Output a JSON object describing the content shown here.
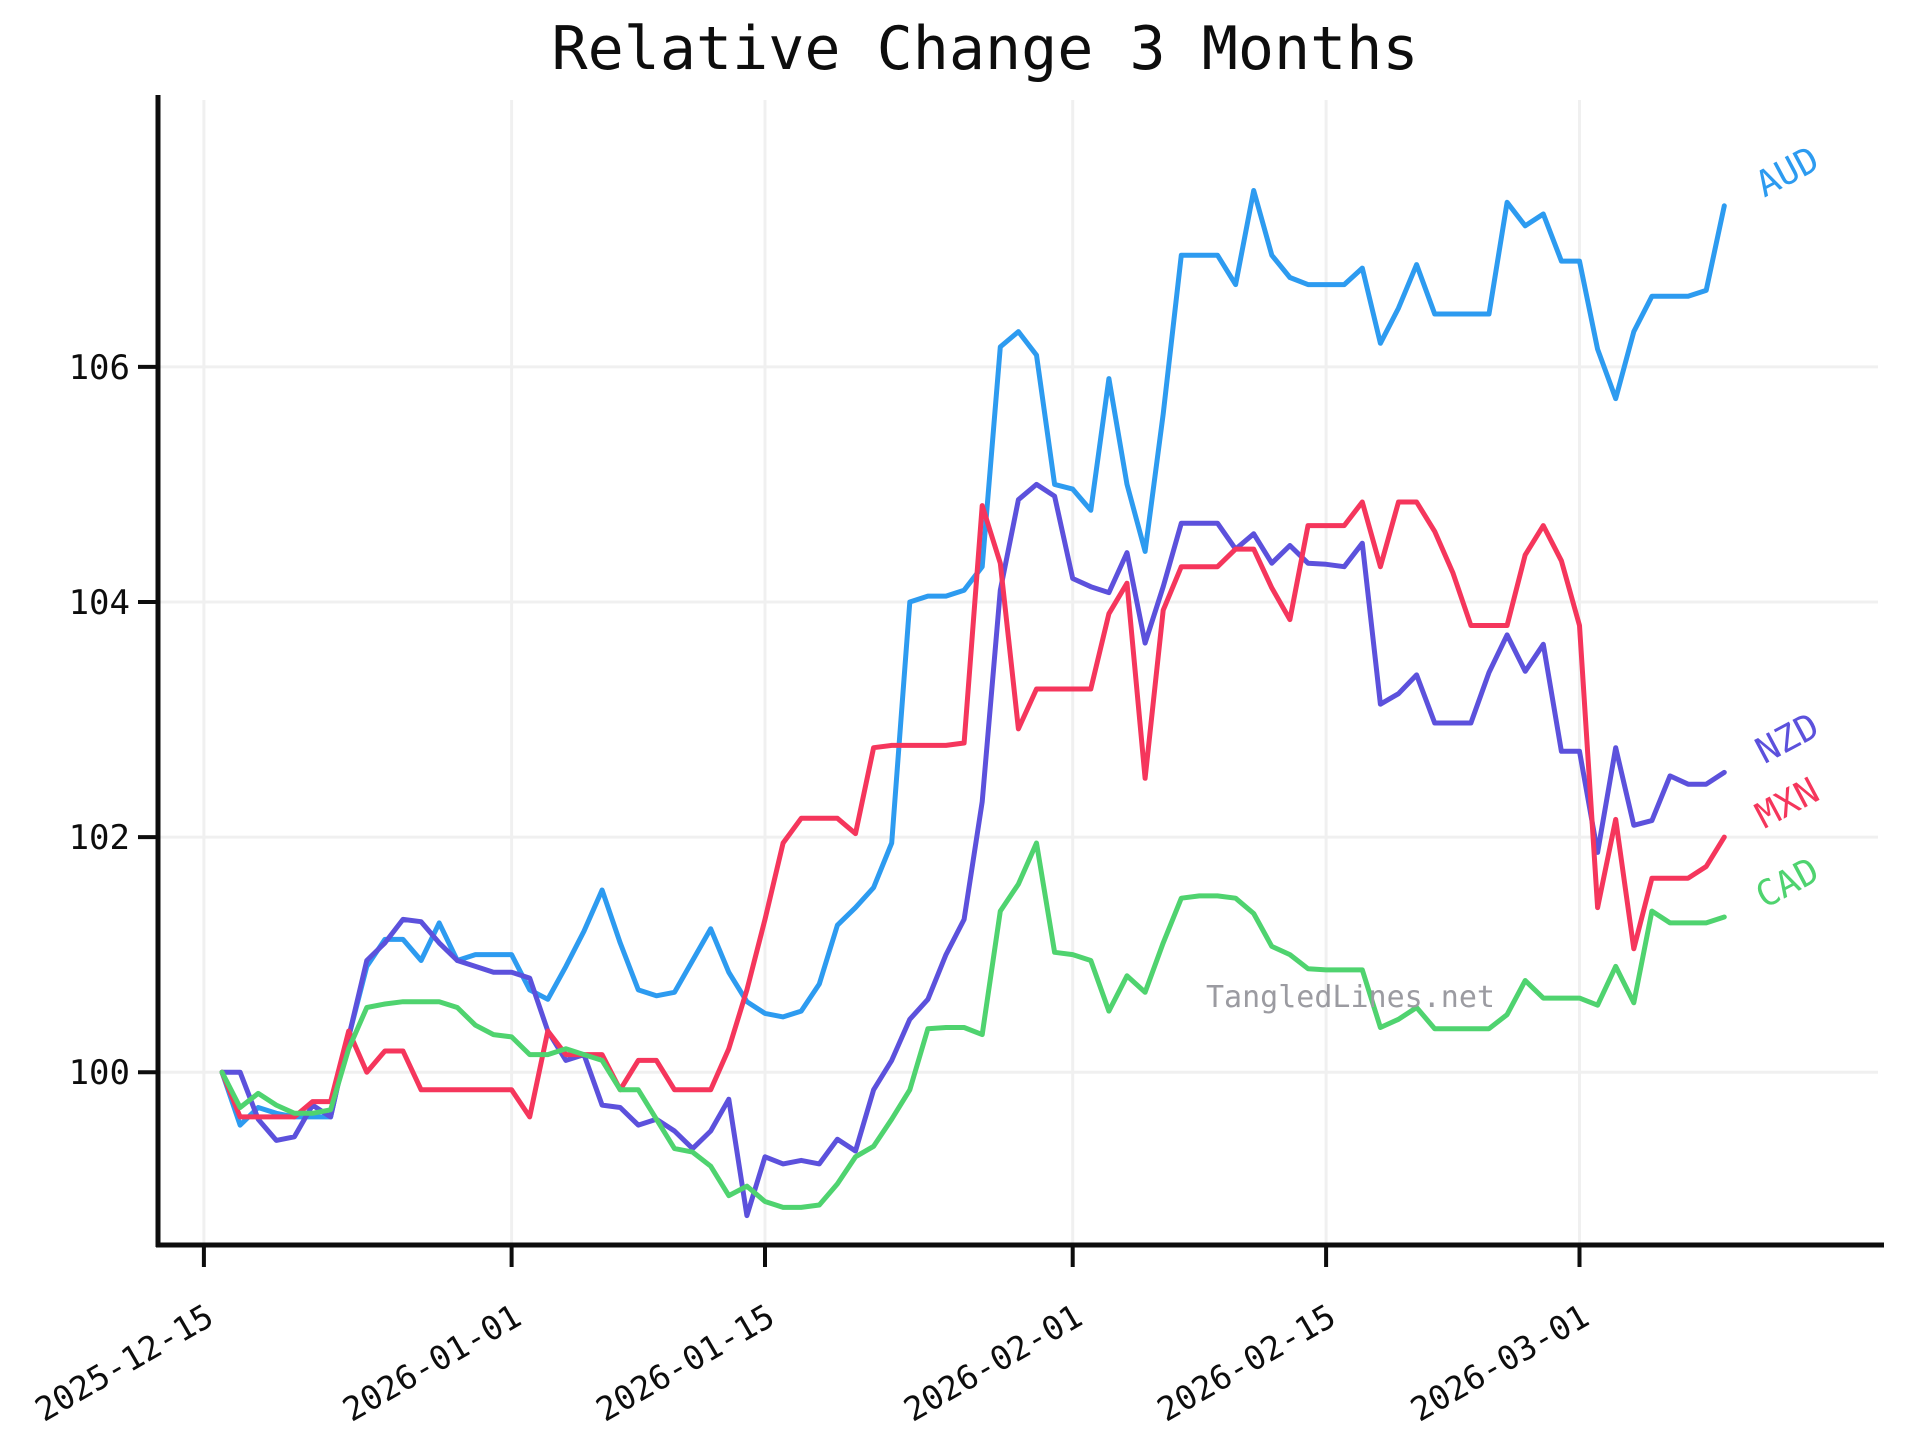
{
  "title": "Relative Change 3 Months",
  "watermark": "TangledLines.net",
  "chart_data": {
    "type": "line",
    "title": "Relative Change 3 Months",
    "x_start_date": "2025-12-16",
    "x_interval_days": 1,
    "x_tick_labels": [
      "2025-12-15",
      "2026-01-01",
      "2026-01-15",
      "2026-02-01",
      "2026-02-15",
      "2026-03-01"
    ],
    "x_tick_day_offsets": [
      -1,
      16,
      30,
      47,
      61,
      75
    ],
    "y_ticks": [
      100,
      102,
      104,
      106
    ],
    "ylim": [
      98.53,
      108.27
    ],
    "grid": true,
    "gridline_color": "#f0f0f0",
    "axis_color": "#0d0d0d",
    "legend_position": "line-end-labels-right",
    "series": [
      {
        "name": "AUD",
        "color": "#2D9BF0",
        "values": [
          100.0,
          99.55,
          99.7,
          99.65,
          99.62,
          99.62,
          99.62,
          100.3,
          100.9,
          101.13,
          101.13,
          100.95,
          101.27,
          100.95,
          101.0,
          101.0,
          101.0,
          100.7,
          100.62,
          100.9,
          101.2,
          101.55,
          101.1,
          100.7,
          100.65,
          100.68,
          100.95,
          101.22,
          100.85,
          100.6,
          100.5,
          100.47,
          100.52,
          100.75,
          101.25,
          101.4,
          101.57,
          101.95,
          104.0,
          104.05,
          104.05,
          104.1,
          104.3,
          106.17,
          106.3,
          106.1,
          105.0,
          104.96,
          104.78,
          105.9,
          105.0,
          104.43,
          105.6,
          106.95,
          106.95,
          106.95,
          106.7,
          107.5,
          106.95,
          106.76,
          106.7,
          106.7,
          106.7,
          106.84,
          106.2,
          106.5,
          106.87,
          106.45,
          106.45,
          106.45,
          106.45,
          107.4,
          107.2,
          107.3,
          106.9,
          106.9,
          106.15,
          105.73,
          106.3,
          106.6,
          106.6,
          106.6,
          106.65,
          107.37
        ]
      },
      {
        "name": "NZD",
        "color": "#5C51DC",
        "values": [
          100.0,
          100.0,
          99.6,
          99.42,
          99.45,
          99.72,
          99.62,
          100.3,
          100.95,
          101.1,
          101.3,
          101.28,
          101.1,
          100.95,
          100.9,
          100.85,
          100.85,
          100.8,
          100.35,
          100.1,
          100.15,
          99.72,
          99.7,
          99.55,
          99.6,
          99.5,
          99.35,
          99.5,
          99.77,
          98.78,
          99.28,
          99.22,
          99.25,
          99.22,
          99.43,
          99.33,
          99.85,
          100.1,
          100.45,
          100.62,
          101.0,
          101.3,
          102.3,
          104.1,
          104.87,
          105.0,
          104.9,
          104.2,
          104.13,
          104.08,
          104.42,
          103.65,
          104.13,
          104.67,
          104.67,
          104.67,
          104.45,
          104.58,
          104.33,
          104.48,
          104.33,
          104.32,
          104.3,
          104.5,
          103.13,
          103.22,
          103.38,
          102.97,
          102.97,
          102.97,
          103.4,
          103.72,
          103.41,
          103.64,
          102.73,
          102.73,
          101.87,
          102.76,
          102.1,
          102.14,
          102.52,
          102.45,
          102.45,
          102.55
        ]
      },
      {
        "name": "MXN",
        "color": "#F5365C",
        "values": [
          100.0,
          99.62,
          99.62,
          99.62,
          99.62,
          99.75,
          99.75,
          100.35,
          100.0,
          100.18,
          100.18,
          99.85,
          99.85,
          99.85,
          99.85,
          99.85,
          99.85,
          99.62,
          100.35,
          100.15,
          100.15,
          100.15,
          99.85,
          100.1,
          100.1,
          99.85,
          99.85,
          99.85,
          100.2,
          100.7,
          101.3,
          101.95,
          102.16,
          102.16,
          102.16,
          102.03,
          102.76,
          102.78,
          102.78,
          102.78,
          102.78,
          102.8,
          104.82,
          104.33,
          102.92,
          103.26,
          103.26,
          103.26,
          103.26,
          103.9,
          104.16,
          102.5,
          103.93,
          104.3,
          104.3,
          104.3,
          104.45,
          104.45,
          104.12,
          103.85,
          104.65,
          104.65,
          104.65,
          104.85,
          104.3,
          104.85,
          104.85,
          104.6,
          104.25,
          103.8,
          103.8,
          103.8,
          104.4,
          104.65,
          104.35,
          103.8,
          101.4,
          102.15,
          101.05,
          101.65,
          101.65,
          101.65,
          101.75,
          102.0
        ]
      },
      {
        "name": "CAD",
        "color": "#4FD36F",
        "values": [
          100.0,
          99.7,
          99.82,
          99.72,
          99.65,
          99.65,
          99.68,
          100.2,
          100.55,
          100.58,
          100.6,
          100.6,
          100.6,
          100.55,
          100.4,
          100.32,
          100.3,
          100.15,
          100.15,
          100.2,
          100.15,
          100.1,
          99.85,
          99.85,
          99.6,
          99.35,
          99.32,
          99.2,
          98.95,
          99.03,
          98.9,
          98.85,
          98.85,
          98.87,
          99.05,
          99.28,
          99.37,
          99.6,
          99.85,
          100.37,
          100.38,
          100.38,
          100.32,
          101.37,
          101.6,
          101.95,
          101.02,
          101.0,
          100.95,
          100.52,
          100.82,
          100.68,
          101.1,
          101.48,
          101.5,
          101.5,
          101.48,
          101.35,
          101.07,
          101.0,
          100.88,
          100.87,
          100.87,
          100.87,
          100.38,
          100.45,
          100.55,
          100.37,
          100.37,
          100.37,
          100.37,
          100.49,
          100.78,
          100.63,
          100.63,
          100.63,
          100.57,
          100.9,
          100.59,
          101.37,
          101.27,
          101.27,
          101.27,
          101.32
        ]
      }
    ]
  }
}
